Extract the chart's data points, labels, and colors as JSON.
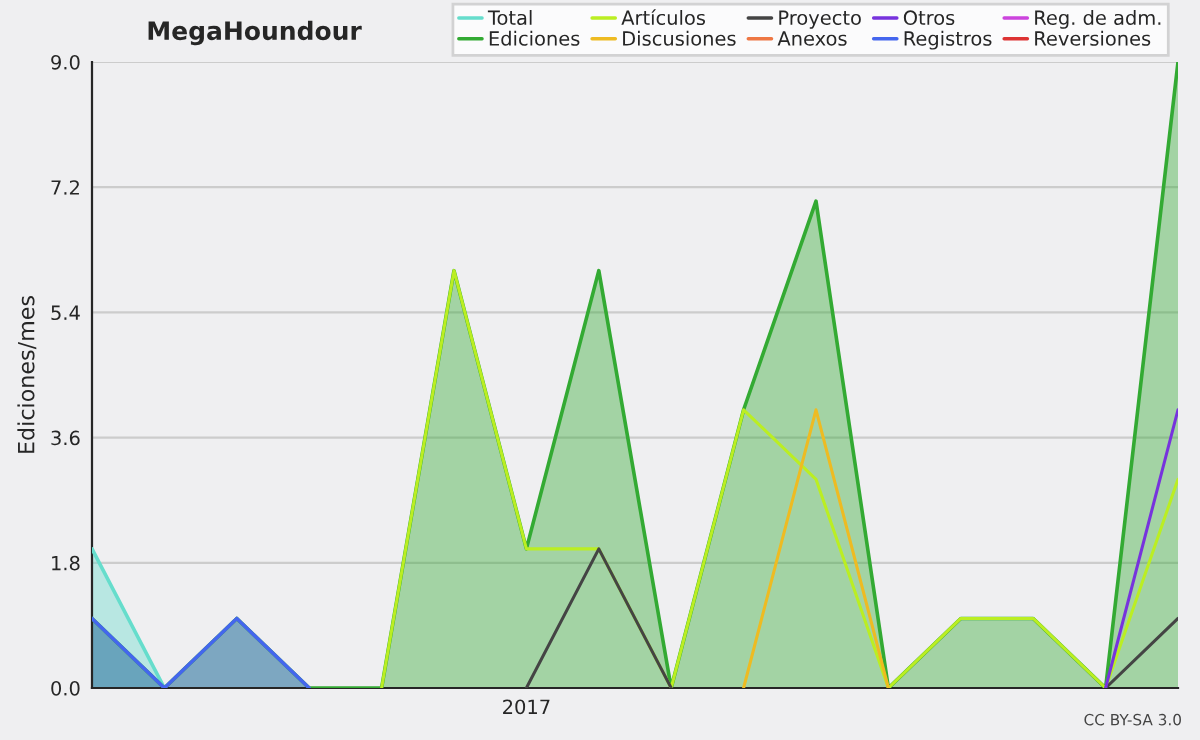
{
  "chart_data": {
    "type": "line",
    "title": "MegaHoundour",
    "ylabel": "Ediciones/mes",
    "categories": [
      null,
      null,
      null,
      null,
      null,
      null,
      "2017",
      null,
      null,
      null,
      null,
      null,
      null,
      null,
      null,
      null
    ],
    "ylim": [
      0,
      9
    ],
    "yticks": [
      {
        "value": 0,
        "label": "0.0"
      },
      {
        "value": 1.8,
        "label": "1.8"
      },
      {
        "value": 3.6,
        "label": "3.6"
      },
      {
        "value": 5.4,
        "label": "5.4"
      },
      {
        "value": 7.2,
        "label": "7.2"
      },
      {
        "value": 9,
        "label": "9.0"
      }
    ],
    "grid": "y",
    "legend": "top right",
    "series": [
      {
        "name": "Total",
        "type": "area",
        "color": "#66ddcc",
        "values": [
          2,
          0,
          null,
          null,
          null,
          null,
          null,
          null,
          null,
          null,
          null,
          null,
          null,
          null,
          null,
          null
        ]
      },
      {
        "name": "Ediciones",
        "type": "area",
        "color": "#33aa33",
        "values": [
          1,
          0,
          1,
          0,
          0,
          6,
          2,
          6,
          0,
          4,
          7,
          0,
          1,
          1,
          0,
          9
        ]
      },
      {
        "name": "Artículos",
        "color": "#bbee22",
        "values": [
          null,
          null,
          null,
          null,
          0,
          6,
          2,
          2,
          0,
          4,
          3,
          0,
          1,
          1,
          0,
          3
        ]
      },
      {
        "name": "Discusiones",
        "color": "#eebb22",
        "values": [
          null,
          null,
          null,
          null,
          null,
          null,
          null,
          null,
          null,
          0,
          4,
          0,
          null,
          null,
          null,
          null
        ]
      },
      {
        "name": "Proyecto",
        "color": "#444444",
        "values": [
          null,
          null,
          null,
          null,
          null,
          null,
          0,
          2,
          0,
          null,
          null,
          null,
          null,
          null,
          0,
          1
        ]
      },
      {
        "name": "Anexos",
        "color": "#ee7744",
        "values": [
          null,
          null,
          null,
          null,
          null,
          null,
          null,
          null,
          null,
          null,
          null,
          null,
          null,
          null,
          null,
          null
        ]
      },
      {
        "name": "Otros",
        "color": "#7733dd",
        "values": [
          null,
          null,
          null,
          null,
          null,
          null,
          null,
          null,
          null,
          null,
          null,
          null,
          null,
          null,
          0,
          4
        ]
      },
      {
        "name": "Registros",
        "type": "area",
        "color": "#4466ee",
        "values": [
          1,
          0,
          1,
          0,
          null,
          null,
          null,
          null,
          null,
          null,
          null,
          null,
          null,
          null,
          null,
          null
        ]
      },
      {
        "name": "Reg. de adm.",
        "color": "#cc44dd",
        "values": [
          null,
          null,
          null,
          null,
          null,
          null,
          null,
          null,
          null,
          null,
          null,
          null,
          null,
          null,
          null,
          null
        ]
      },
      {
        "name": "Reversiones",
        "color": "#dd3333",
        "values": [
          null,
          null,
          null,
          null,
          null,
          null,
          null,
          null,
          null,
          null,
          null,
          null,
          null,
          null,
          null,
          null
        ]
      }
    ],
    "annotations": [
      "CC BY-SA 3.0"
    ]
  }
}
